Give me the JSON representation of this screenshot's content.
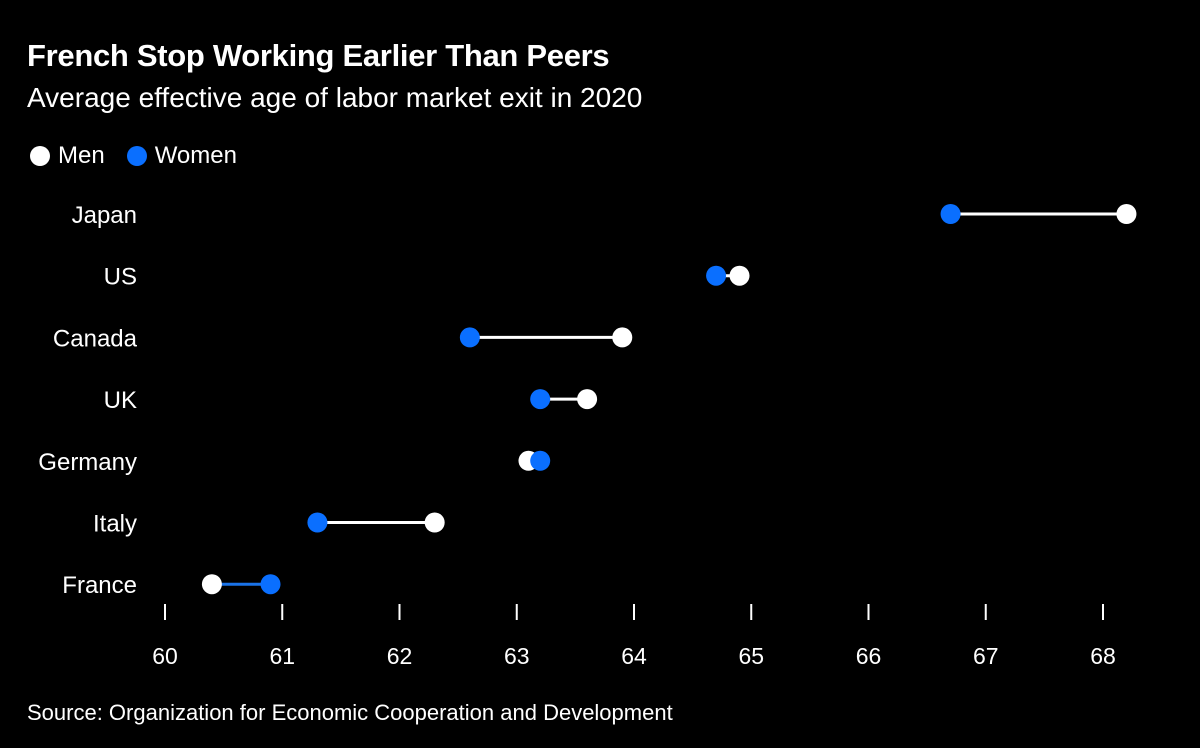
{
  "header": {
    "title": "French Stop Working Earlier Than Peers",
    "subtitle": "Average effective age of labor market exit in 2020"
  },
  "legend": {
    "men_label": "Men",
    "women_label": "Women"
  },
  "footer": {
    "source": "Source: Organization for Economic Cooperation and Development"
  },
  "colors": {
    "background": "#000000",
    "men": "#ffffff",
    "women": "#0a6fff",
    "connector_default": "#ffffff",
    "connector_women_higher": "#1a73e8"
  },
  "chart_data": {
    "type": "dumbbell",
    "title": "French Stop Working Earlier Than Peers",
    "subtitle": "Average effective age of labor market exit in 2020",
    "xlabel": "",
    "ylabel": "",
    "xlim": [
      60,
      68
    ],
    "x_ticks": [
      60,
      61,
      62,
      63,
      64,
      65,
      66,
      67,
      68
    ],
    "categories": [
      "Japan",
      "US",
      "Canada",
      "UK",
      "Germany",
      "Italy",
      "France"
    ],
    "series": [
      {
        "name": "Men",
        "values": [
          68.2,
          64.9,
          63.9,
          63.6,
          63.1,
          62.3,
          60.4
        ]
      },
      {
        "name": "Women",
        "values": [
          66.7,
          64.7,
          62.6,
          63.2,
          63.2,
          61.3,
          60.9
        ]
      }
    ],
    "legend_position": "top-left",
    "grid": false
  }
}
